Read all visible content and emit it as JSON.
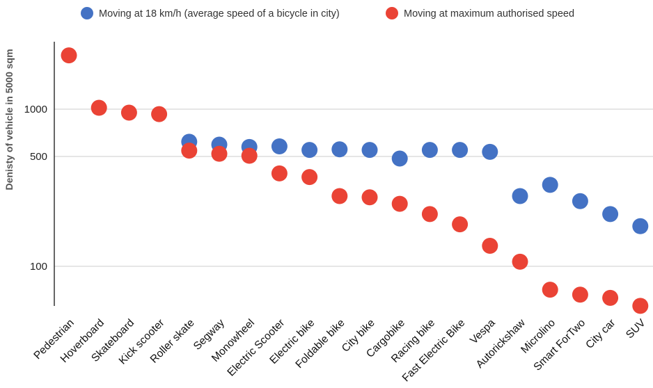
{
  "chart_data": {
    "type": "scatter",
    "title": "",
    "xlabel": "",
    "ylabel": "Denisty of vehicle in 5000 sqm",
    "y_scale": "log",
    "ylim": [
      55,
      3500
    ],
    "y_ticks": [
      {
        "value": 100,
        "label": "100"
      },
      {
        "value": 500,
        "label": "500"
      },
      {
        "value": 1000,
        "label": "1000"
      }
    ],
    "grid": true,
    "legend_position": "top",
    "categories": [
      "Pedestrian",
      "Hoverboard",
      "Skateboard",
      "Kick scooter",
      "Roller skate",
      "Segway",
      "Monowheel",
      "Electric Scooter",
      "Electric bike",
      "Foldable bike",
      "City bike",
      "Cargobike",
      "Racing bike",
      "Fast Electric Bike",
      "Vespa",
      "Autorickshaw",
      "Microlino",
      "Smart ForTwo",
      "City car",
      "SUV"
    ],
    "series": [
      {
        "name": "Moving at 18 km/h (average speed of a bicycle in city)",
        "color": "#4472c4",
        "values": [
          null,
          null,
          null,
          null,
          620,
          595,
          575,
          580,
          550,
          555,
          550,
          485,
          550,
          550,
          535,
          280,
          330,
          260,
          215,
          180
        ]
      },
      {
        "name": "Moving at maximum authorised speed",
        "color": "#ea4335",
        "values": [
          2200,
          1020,
          950,
          930,
          545,
          520,
          505,
          390,
          370,
          280,
          275,
          250,
          215,
          185,
          135,
          107,
          71,
          66,
          63,
          56
        ]
      }
    ]
  }
}
